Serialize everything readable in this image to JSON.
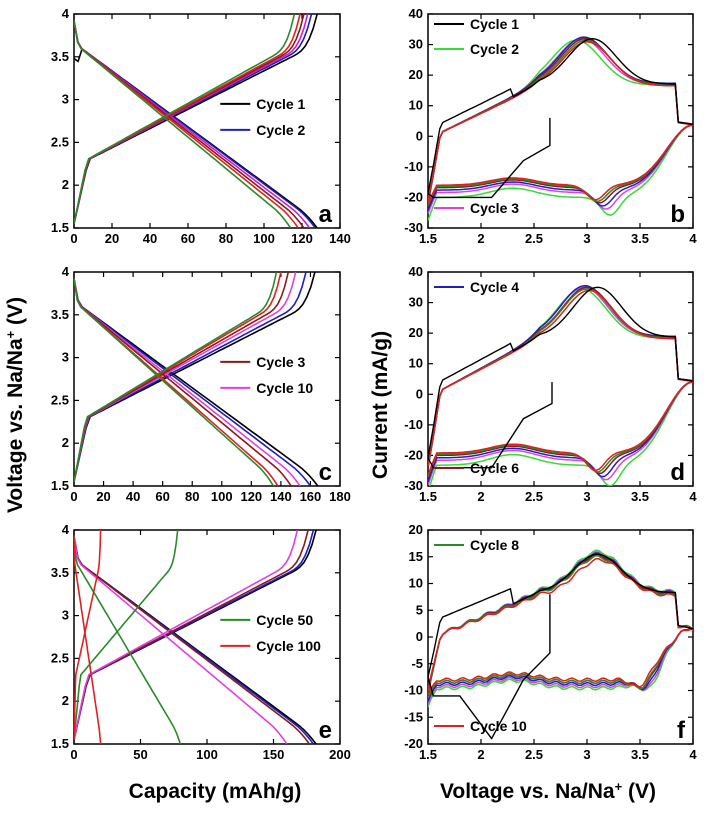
{
  "figure": {
    "ylabel_left": "Voltage vs. Na/Na",
    "ylabel_left_sup": "+",
    "ylabel_left_unit": " (V)",
    "ylabel_right": "Current (mA/g)",
    "xlabel_left": "Capacity (mAh/g)",
    "xlabel_right": "Voltage vs. Na/Na",
    "xlabel_right_sup": "+",
    "xlabel_right_unit": " (V)"
  },
  "chart_data": [
    {
      "id": "a",
      "type": "line",
      "kind": "gcd",
      "xlim": [
        0,
        140
      ],
      "ylim": [
        1.5,
        4.0
      ],
      "xticks": [
        0,
        20,
        40,
        60,
        80,
        100,
        120,
        140
      ],
      "yticks": [
        1.5,
        2.0,
        2.5,
        3.0,
        3.5,
        4.0
      ],
      "show_xlabels": true,
      "legend": [
        {
          "label": "Cycle 1",
          "color": "#000000"
        },
        {
          "label": "Cycle 2",
          "color": "#1f1fbf"
        }
      ],
      "series": [
        {
          "color": "#000000",
          "charge_cap": 128,
          "discharge_cap": 128,
          "first": true
        },
        {
          "color": "#1f1fbf",
          "charge_cap": 125,
          "discharge_cap": 127
        },
        {
          "color": "#cc1fcc",
          "charge_cap": 123,
          "discharge_cap": 124
        },
        {
          "color": "#8b1a1a",
          "charge_cap": 121,
          "discharge_cap": 121
        },
        {
          "color": "#e02020",
          "charge_cap": 119,
          "discharge_cap": 118
        },
        {
          "color": "#2a8a2a",
          "charge_cap": 116,
          "discharge_cap": 114
        }
      ]
    },
    {
      "id": "b",
      "type": "line",
      "kind": "cv",
      "xlim": [
        1.5,
        4.0
      ],
      "ylim": [
        -30,
        40
      ],
      "xticks": [
        1.5,
        2.0,
        2.5,
        3.0,
        3.5,
        4.0
      ],
      "yticks": [
        -30,
        -20,
        -10,
        0,
        10,
        20,
        30,
        40
      ],
      "show_xlabels": true,
      "legend": [
        {
          "label": "Cycle 1",
          "color": "#000000"
        },
        {
          "label": "Cycle 2",
          "color": "#33dd33"
        },
        {
          "label": "Cycle 3",
          "color": "#e040e0"
        }
      ],
      "series": [
        {
          "color": "#33dd33",
          "peak": 30.5,
          "peak_v": 2.9,
          "red": -25,
          "red_v": 3.22
        },
        {
          "color": "#e040e0",
          "peak": 31,
          "peak_v": 2.95,
          "red": -23,
          "red_v": 3.18
        },
        {
          "color": "#1f1fbf",
          "peak": 31.5,
          "peak_v": 2.97,
          "red": -22,
          "red_v": 3.15
        },
        {
          "color": "#8b1a1a",
          "peak": 31,
          "peak_v": 2.98,
          "red": -21,
          "red_v": 3.12
        },
        {
          "color": "#2a8a2a",
          "peak": 30.5,
          "peak_v": 2.99,
          "red": -20.5,
          "red_v": 3.1
        },
        {
          "color": "#e02020",
          "peak": 30,
          "peak_v": 3.0,
          "red": -20,
          "red_v": 3.08
        }
      ],
      "first": {
        "color": "#000000",
        "peak": 31,
        "peak_v": 3.05,
        "red": -20,
        "red_v": 3.1,
        "start_v": 2.65,
        "start_i": 6
      }
    },
    {
      "id": "c",
      "type": "line",
      "kind": "gcd",
      "xlim": [
        0,
        180
      ],
      "ylim": [
        1.5,
        4.0
      ],
      "xticks": [
        0,
        20,
        40,
        60,
        80,
        100,
        120,
        140,
        160,
        180
      ],
      "yticks": [
        1.5,
        2.0,
        2.5,
        3.0,
        3.5,
        4.0
      ],
      "show_xlabels": true,
      "legend": [
        {
          "label": "Cycle 3",
          "color": "#8b1a1a"
        },
        {
          "label": "Cycle 10",
          "color": "#e040e0"
        }
      ],
      "series": [
        {
          "color": "#000000",
          "charge_cap": 163,
          "discharge_cap": 165
        },
        {
          "color": "#1f1fbf",
          "charge_cap": 157,
          "discharge_cap": 160
        },
        {
          "color": "#e040e0",
          "charge_cap": 150,
          "discharge_cap": 153
        },
        {
          "color": "#8b1a1a",
          "charge_cap": 145,
          "discharge_cap": 147
        },
        {
          "color": "#e02020",
          "charge_cap": 140,
          "discharge_cap": 138
        },
        {
          "color": "#2a8a2a",
          "charge_cap": 137,
          "discharge_cap": 135
        }
      ]
    },
    {
      "id": "d",
      "type": "line",
      "kind": "cv",
      "xlim": [
        1.5,
        4.0
      ],
      "ylim": [
        -30,
        40
      ],
      "xticks": [
        1.5,
        2.0,
        2.5,
        3.0,
        3.5,
        4.0
      ],
      "yticks": [
        -30,
        -20,
        -10,
        0,
        10,
        20,
        30,
        40
      ],
      "show_xlabels": true,
      "legend_top": [
        {
          "label": "Cycle 4",
          "color": "#1f1fbf"
        }
      ],
      "legend_bottom": [
        {
          "label": "Cycle 6",
          "color": "#8b1a1a"
        }
      ],
      "series": [
        {
          "color": "#33dd33",
          "peak": 33.5,
          "peak_v": 2.95,
          "red": -29,
          "red_v": 3.22
        },
        {
          "color": "#e040e0",
          "peak": 34,
          "peak_v": 2.97,
          "red": -27,
          "red_v": 3.18
        },
        {
          "color": "#1f1fbf",
          "peak": 34.5,
          "peak_v": 2.98,
          "red": -26,
          "red_v": 3.15
        },
        {
          "color": "#8b1a1a",
          "peak": 34,
          "peak_v": 3.0,
          "red": -25,
          "red_v": 3.12
        },
        {
          "color": "#2a8a2a",
          "peak": 33.5,
          "peak_v": 3.0,
          "red": -24.5,
          "red_v": 3.1
        },
        {
          "color": "#e02020",
          "peak": 33,
          "peak_v": 3.02,
          "red": -24,
          "red_v": 3.08
        }
      ],
      "first": {
        "color": "#000000",
        "peak": 34,
        "peak_v": 3.1,
        "red": -24,
        "red_v": 3.1,
        "start_v": 2.67,
        "start_i": 4
      }
    },
    {
      "id": "e",
      "type": "line",
      "kind": "gcd",
      "xlim": [
        0,
        200
      ],
      "ylim": [
        1.5,
        4.0
      ],
      "xticks": [
        0,
        50,
        100,
        150,
        200
      ],
      "yticks": [
        1.5,
        2.0,
        2.5,
        3.0,
        3.5,
        4.0
      ],
      "show_xlabels": true,
      "legend": [
        {
          "label": "Cycle 50",
          "color": "#2a8a2a"
        },
        {
          "label": "Cycle 100",
          "color": "#e02020"
        }
      ],
      "series": [
        {
          "color": "#000000",
          "charge_cap": 182,
          "discharge_cap": 182
        },
        {
          "color": "#1f1fbf",
          "charge_cap": 180,
          "discharge_cap": 180
        },
        {
          "color": "#8b1a1a",
          "charge_cap": 176,
          "discharge_cap": 177
        },
        {
          "color": "#e040e0",
          "charge_cap": 168,
          "discharge_cap": 160
        },
        {
          "color": "#2a8a2a",
          "charge_cap": 78,
          "discharge_cap": 80
        },
        {
          "color": "#e02020",
          "charge_cap": 20,
          "discharge_cap": 20
        }
      ]
    },
    {
      "id": "f",
      "type": "line",
      "kind": "cv",
      "xlim": [
        1.5,
        4.0
      ],
      "ylim": [
        -20,
        20
      ],
      "xticks": [
        1.5,
        2.0,
        2.5,
        3.0,
        3.5,
        4.0
      ],
      "yticks": [
        -20,
        -15,
        -10,
        -5,
        0,
        5,
        10,
        15,
        20
      ],
      "show_xlabels": true,
      "legend_top": [
        {
          "label": "Cycle 8",
          "color": "#2a8a2a"
        }
      ],
      "legend_bottom": [
        {
          "label": "Cycle 10",
          "color": "#e02020"
        }
      ],
      "series": [
        {
          "color": "#33dd33",
          "peak": 15.5,
          "peak_v": 3.1,
          "red": -12,
          "red_v": 3.6,
          "noisy": true
        },
        {
          "color": "#e040e0",
          "peak": 15.2,
          "peak_v": 3.1,
          "red": -11.5,
          "red_v": 3.58,
          "noisy": true
        },
        {
          "color": "#1f1fbf",
          "peak": 15,
          "peak_v": 3.1,
          "red": -11,
          "red_v": 3.56,
          "noisy": true
        },
        {
          "color": "#8b1a1a",
          "peak": 14.8,
          "peak_v": 3.1,
          "red": -10.5,
          "red_v": 3.54,
          "noisy": true
        },
        {
          "color": "#2a8a2a",
          "peak": 14.5,
          "peak_v": 3.1,
          "red": -10.5,
          "red_v": 3.52,
          "noisy": true
        },
        {
          "color": "#e02020",
          "peak": 14,
          "peak_v": 3.12,
          "red": -10,
          "red_v": 3.5,
          "noisy": true
        }
      ],
      "first": {
        "color": "#000000",
        "peak": 15,
        "peak_v": 3.1,
        "red": -11,
        "red_v": 3.5,
        "start_v": 2.65,
        "start_i": 8,
        "bottom": -19
      }
    }
  ],
  "panel_letters": [
    "a",
    "b",
    "c",
    "d",
    "e",
    "f"
  ]
}
